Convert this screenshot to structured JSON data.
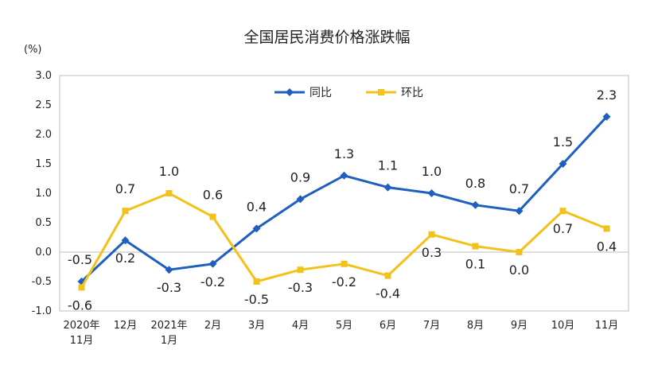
{
  "chart_data": {
    "type": "line",
    "title": "全国居民消费价格涨跌幅",
    "ylabel": "(%)",
    "ylim": [
      -1.0,
      3.0
    ],
    "yticks": [
      "3.0",
      "2.5",
      "2.0",
      "1.5",
      "1.0",
      "0.5",
      "0.0",
      "-0.5",
      "-1.0"
    ],
    "categories": [
      [
        "2020年",
        "11月"
      ],
      [
        "12月"
      ],
      [
        "2021年",
        "1月"
      ],
      [
        "2月"
      ],
      [
        "3月"
      ],
      [
        "4月"
      ],
      [
        "5月"
      ],
      [
        "6月"
      ],
      [
        "7月"
      ],
      [
        "8月"
      ],
      [
        "9月"
      ],
      [
        "10月"
      ],
      [
        "11月"
      ]
    ],
    "legend_position": "top",
    "series": [
      {
        "name": "同比",
        "color": "#1f5fbf",
        "marker": "diamond",
        "values": [
          -0.5,
          0.2,
          -0.3,
          -0.2,
          0.4,
          0.9,
          1.3,
          1.1,
          1.0,
          0.8,
          0.7,
          1.5,
          2.3
        ],
        "labels": [
          "-0.5",
          "0.2",
          "-0.3",
          "-0.2",
          "0.4",
          "0.9",
          "1.3",
          "1.1",
          "1.0",
          "0.8",
          "0.7",
          "1.5",
          "2.3"
        ]
      },
      {
        "name": "环比",
        "color": "#f2c21b",
        "marker": "square",
        "values": [
          -0.6,
          0.7,
          1.0,
          0.6,
          -0.5,
          -0.3,
          -0.2,
          -0.4,
          0.3,
          0.1,
          0.0,
          0.7,
          0.4
        ],
        "labels": [
          "-0.6",
          "0.7",
          "1.0",
          "0.6",
          "-0.5",
          "-0.3",
          "-0.2",
          "-0.4",
          "0.3",
          "0.1",
          "0.0",
          "0.7",
          "0.4"
        ]
      }
    ]
  }
}
